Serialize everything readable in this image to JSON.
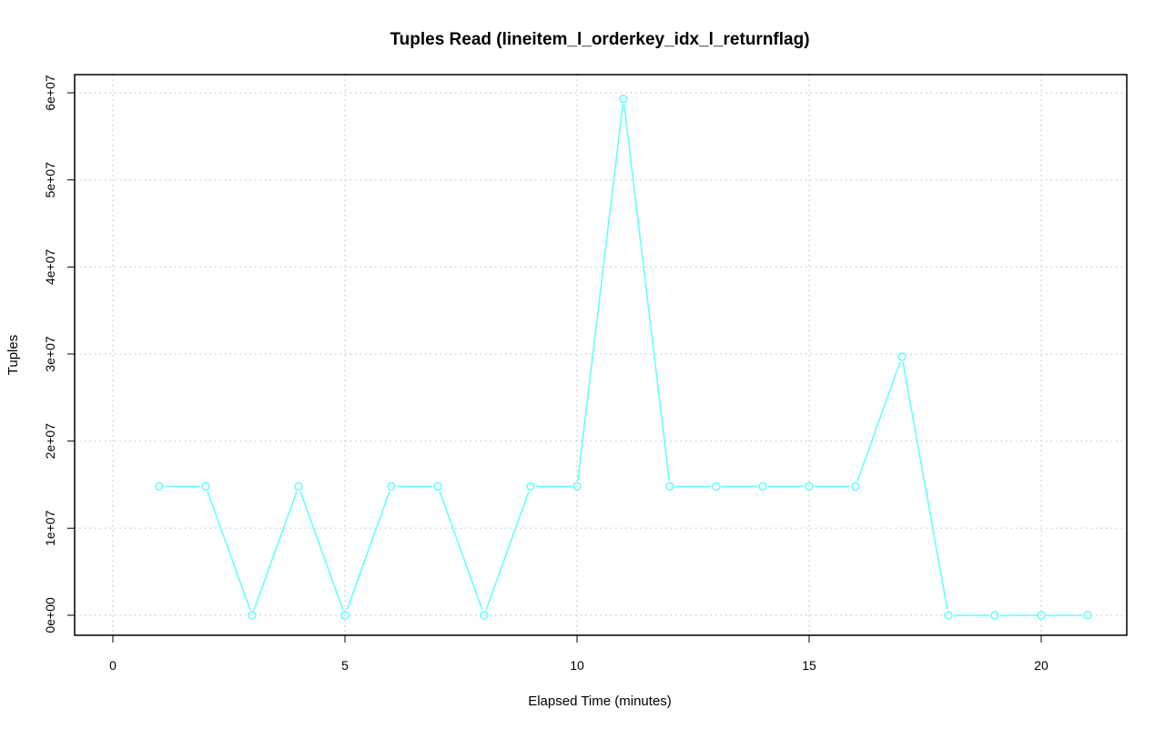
{
  "chart_data": {
    "type": "line",
    "title": "Tuples Read (lineitem_l_orderkey_idx_l_returnflag)",
    "xlabel": "Elapsed Time (minutes)",
    "ylabel": "Tuples",
    "xlim": [
      0,
      21
    ],
    "ylim": [
      0,
      60000000
    ],
    "x_ticks": [
      0,
      5,
      10,
      15,
      20
    ],
    "x_tick_labels": [
      "0",
      "5",
      "10",
      "15",
      "20"
    ],
    "y_ticks": [
      0,
      10000000,
      20000000,
      30000000,
      40000000,
      50000000,
      60000000
    ],
    "y_tick_labels": [
      "0e+00",
      "1e+07",
      "2e+07",
      "3e+07",
      "4e+07",
      "5e+07",
      "6e+07"
    ],
    "grid": true,
    "series": [
      {
        "color": "#66ffff",
        "x": [
          1,
          2,
          3,
          4,
          5,
          6,
          7,
          8,
          9,
          10,
          11,
          12,
          13,
          14,
          15,
          16,
          17,
          18,
          19,
          20,
          21
        ],
        "values": [
          14800000,
          14800000,
          0,
          14800000,
          0,
          14800000,
          14800000,
          0,
          14800000,
          14800000,
          59300000,
          14800000,
          14800000,
          14800000,
          14800000,
          14800000,
          29700000,
          0,
          0,
          0,
          0
        ]
      }
    ]
  }
}
